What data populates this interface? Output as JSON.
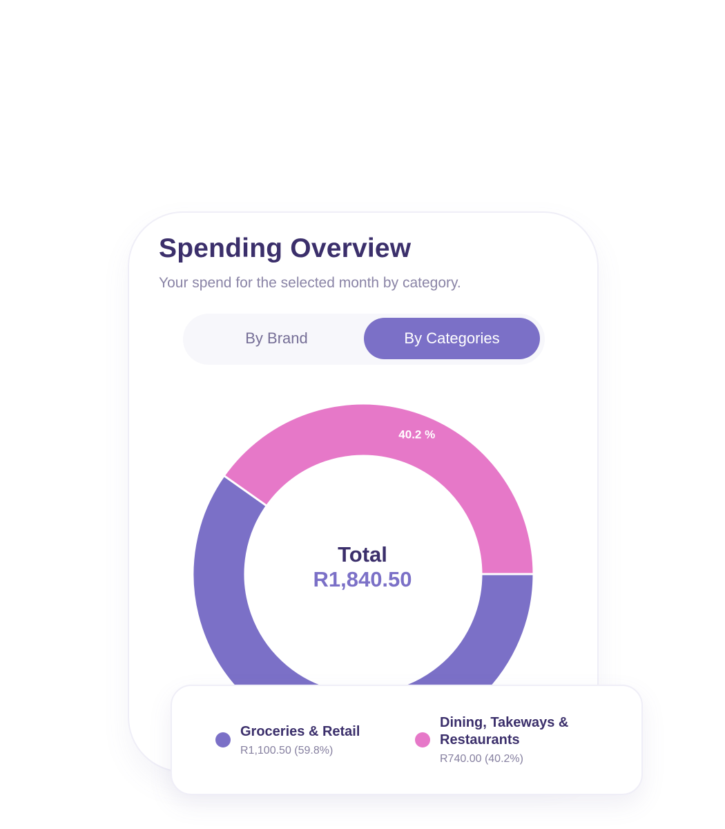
{
  "card": {
    "title": "Spending Overview",
    "subtitle": "Your spend for the selected month by category."
  },
  "toggle": {
    "options": [
      "By Brand",
      "By Categories"
    ],
    "selected": "By Categories"
  },
  "center": {
    "label": "Total",
    "value": "R1,840.50"
  },
  "chart_data": {
    "type": "pie",
    "donut": true,
    "total": 1840.5,
    "slices": [
      {
        "name": "Groceries & Retail",
        "value": 1100.5,
        "percent": 59.8,
        "color": "#7b70c7"
      },
      {
        "name": "Dining, Takeways & Restaurants",
        "value": 740.0,
        "percent": 40.2,
        "color": "#e678c8",
        "label": "40.2 %"
      }
    ]
  },
  "legend": {
    "items": [
      {
        "name": "Groceries & Retail",
        "value": "R1,100.50 (59.8%)",
        "color": "#7b70c7"
      },
      {
        "name": "Dining, Takeways & Restaurants",
        "value": "R740.00 (40.2%)",
        "color": "#e678c8"
      }
    ]
  },
  "colors": {
    "title": "#3b2f6b",
    "accent": "#7b70c7",
    "pink": "#e678c8"
  }
}
